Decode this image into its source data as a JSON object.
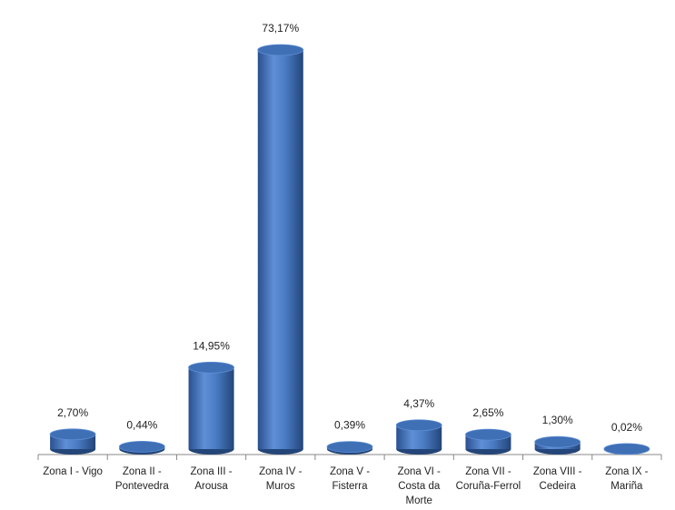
{
  "chart_data": {
    "type": "bar",
    "categories": [
      "Zona I - Vigo",
      "Zona II - Pontevedra",
      "Zona III - Arousa",
      "Zona IV - Muros",
      "Zona V - Fisterra",
      "Zona VI - Costa da Morte",
      "Zona VII - Coruña-Ferrol",
      "Zona VIII - Cedeira",
      "Zona IX - Mariña"
    ],
    "values": [
      2.7,
      0.44,
      14.95,
      73.17,
      0.39,
      4.37,
      2.65,
      1.3,
      0.02
    ],
    "value_labels": [
      "2,70%",
      "0,44%",
      "14,95%",
      "73,17%",
      "0,39%",
      "4,37%",
      "2,65%",
      "1,30%",
      "0,02%"
    ],
    "color": "#3f6fb5"
  }
}
